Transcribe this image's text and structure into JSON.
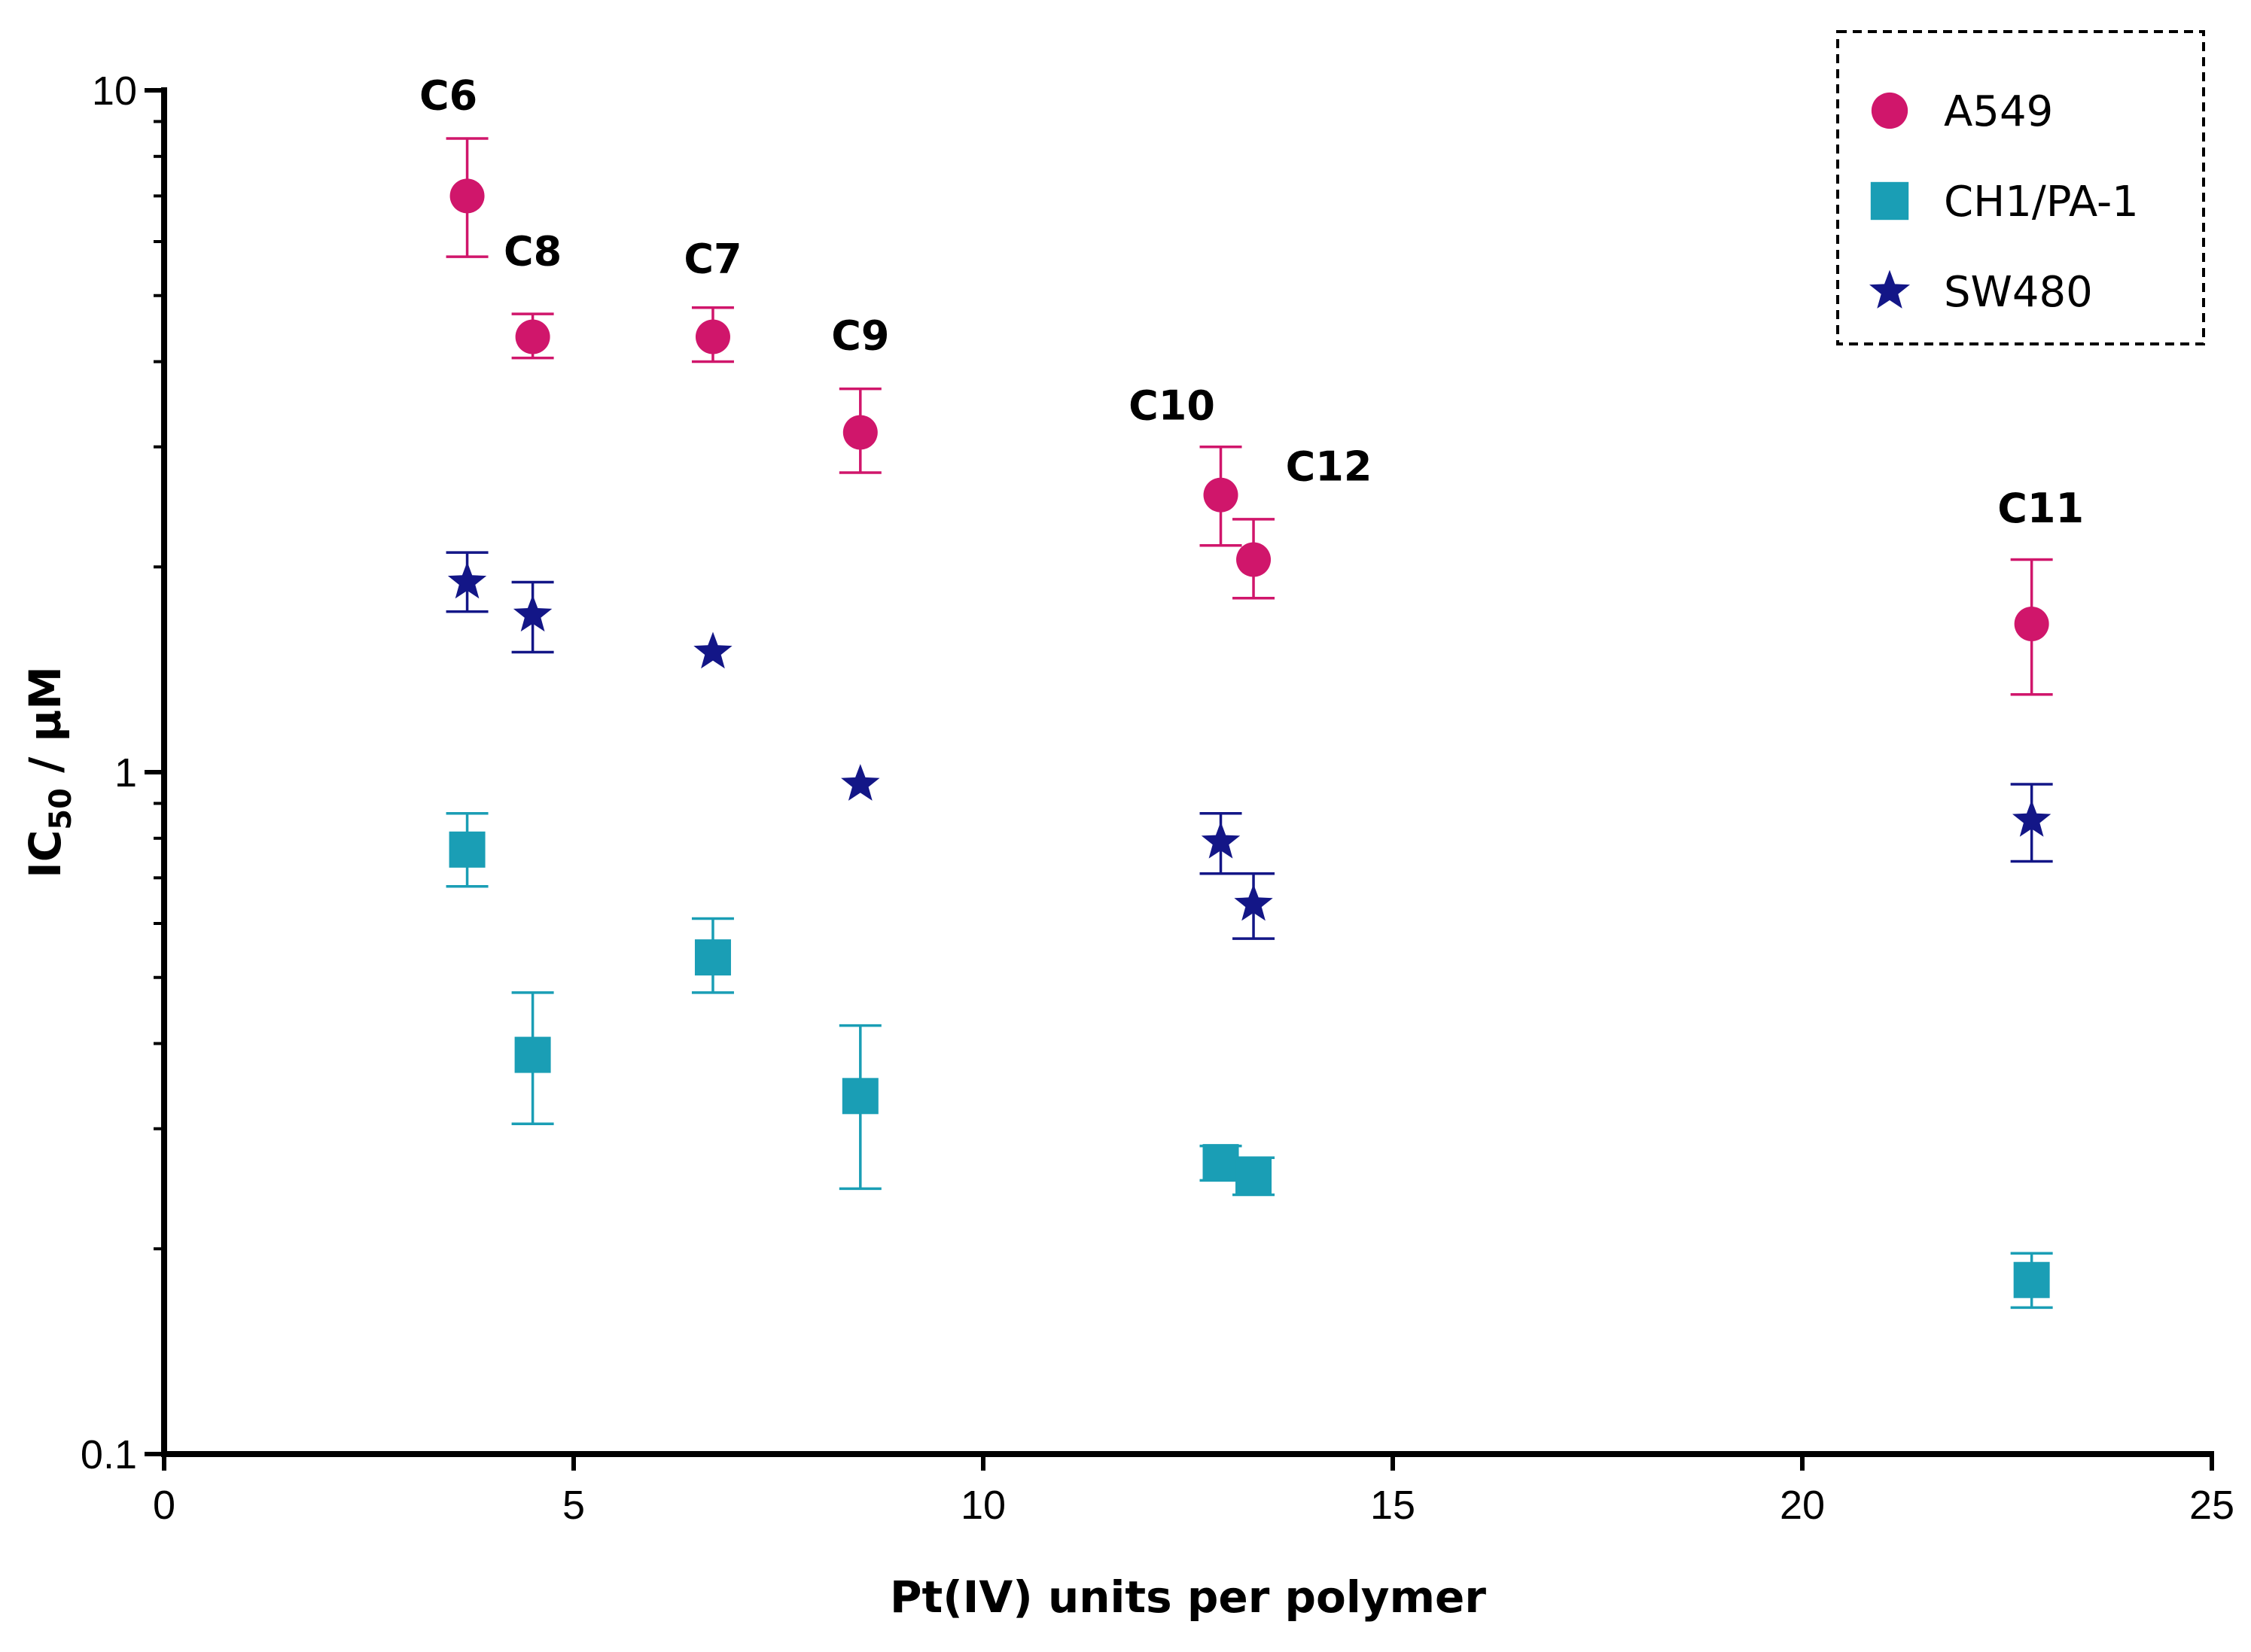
{
  "chart_data": {
    "type": "scatter",
    "title": "",
    "xlabel": "Pt(IV) units per polymer",
    "ylabel": {
      "main": "IC",
      "sub": "50",
      "rest": " / µM"
    },
    "xlim": [
      0,
      25
    ],
    "ylim": [
      0.1,
      10
    ],
    "yscale": "log",
    "x_ticks": [
      0,
      5,
      10,
      15,
      20,
      25
    ],
    "y_ticks": [
      0.1,
      1,
      10
    ],
    "legend_position": "top-right",
    "series": [
      {
        "name": "A549",
        "marker": "circle",
        "color": "#d0166b",
        "points": [
          {
            "x": 3.7,
            "y": 7.0,
            "lo": 5.7,
            "hi": 8.5
          },
          {
            "x": 4.5,
            "y": 4.35,
            "lo": 4.05,
            "hi": 4.7
          },
          {
            "x": 6.7,
            "y": 4.35,
            "lo": 4.0,
            "hi": 4.8
          },
          {
            "x": 8.5,
            "y": 3.15,
            "lo": 2.75,
            "hi": 3.65
          },
          {
            "x": 12.9,
            "y": 2.55,
            "lo": 2.15,
            "hi": 3.0
          },
          {
            "x": 13.3,
            "y": 2.05,
            "lo": 1.8,
            "hi": 2.35
          },
          {
            "x": 22.8,
            "y": 1.65,
            "lo": 1.3,
            "hi": 2.05
          }
        ]
      },
      {
        "name": "CH1/PA-1",
        "marker": "square",
        "color": "#1a9eb5",
        "points": [
          {
            "x": 3.7,
            "y": 0.77,
            "lo": 0.68,
            "hi": 0.87
          },
          {
            "x": 4.5,
            "y": 0.385,
            "lo": 0.305,
            "hi": 0.475
          },
          {
            "x": 6.7,
            "y": 0.535,
            "lo": 0.475,
            "hi": 0.61
          },
          {
            "x": 8.5,
            "y": 0.335,
            "lo": 0.245,
            "hi": 0.425
          },
          {
            "x": 12.9,
            "y": 0.268,
            "lo": 0.252,
            "hi": 0.283
          },
          {
            "x": 13.3,
            "y": 0.256,
            "lo": 0.24,
            "hi": 0.272
          },
          {
            "x": 22.8,
            "y": 0.18,
            "lo": 0.164,
            "hi": 0.197
          }
        ]
      },
      {
        "name": "SW480",
        "marker": "star",
        "color": "#131687",
        "points": [
          {
            "x": 3.7,
            "y": 1.9,
            "lo": 1.72,
            "hi": 2.1
          },
          {
            "x": 4.5,
            "y": 1.7,
            "lo": 1.5,
            "hi": 1.9
          },
          {
            "x": 6.7,
            "y": 1.5
          },
          {
            "x": 8.5,
            "y": 0.96
          },
          {
            "x": 12.9,
            "y": 0.79,
            "lo": 0.71,
            "hi": 0.87
          },
          {
            "x": 13.3,
            "y": 0.64,
            "lo": 0.57,
            "hi": 0.71
          },
          {
            "x": 22.8,
            "y": 0.85,
            "lo": 0.74,
            "hi": 0.96
          }
        ]
      }
    ],
    "annotations": [
      {
        "text": "C6",
        "x": 3.7,
        "y": 7.0
      },
      {
        "text": "C8",
        "x": 4.5,
        "y": 4.35
      },
      {
        "text": "C7",
        "x": 6.7,
        "y": 4.35
      },
      {
        "text": "C9",
        "x": 8.5,
        "y": 3.15
      },
      {
        "text": "C10",
        "x": 12.9,
        "y": 2.55
      },
      {
        "text": "C12",
        "x": 13.3,
        "y": 2.05
      },
      {
        "text": "C11",
        "x": 22.8,
        "y": 1.65
      }
    ]
  }
}
